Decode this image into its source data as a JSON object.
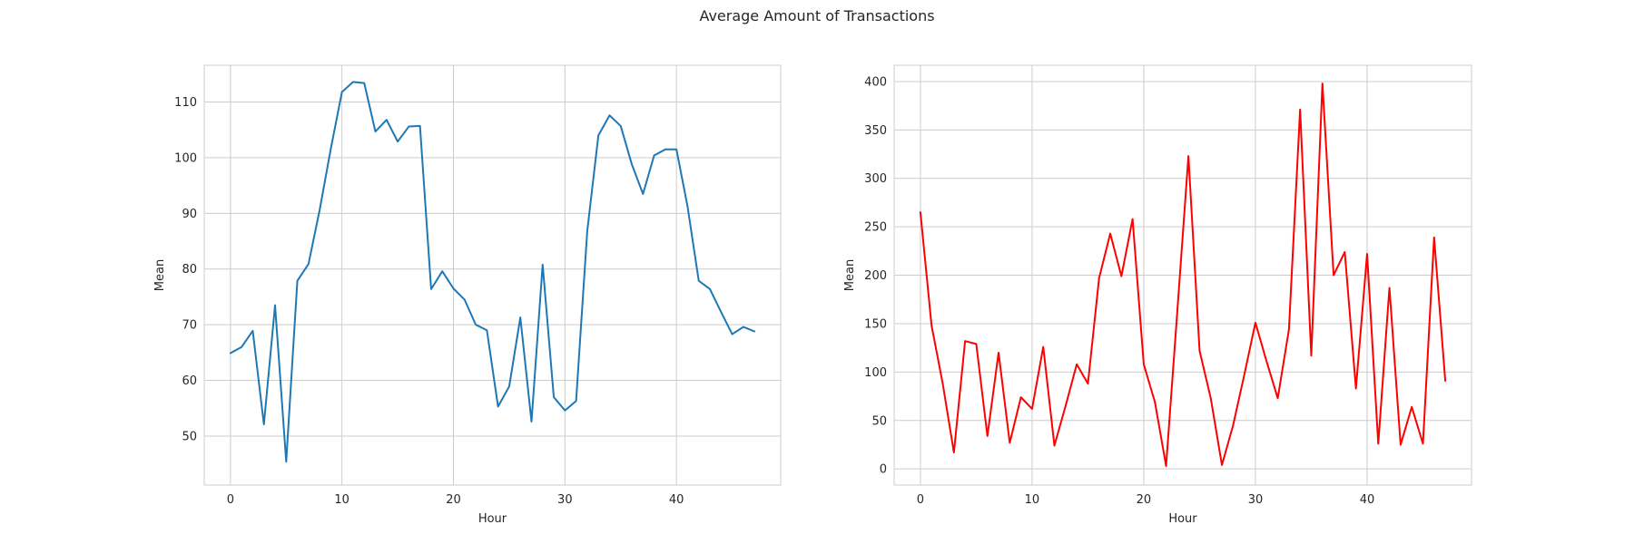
{
  "figure": {
    "title": "Average Amount of Transactions"
  },
  "chart_data": [
    {
      "type": "line",
      "xlabel": "Hour",
      "ylabel": "Mean",
      "xlim": [
        -2.35,
        49.35
      ],
      "ylim": [
        41.2,
        116.6
      ],
      "xticks": [
        0,
        10,
        20,
        30,
        40
      ],
      "yticks": [
        50,
        60,
        70,
        80,
        90,
        100,
        110
      ],
      "grid": true,
      "series": [
        {
          "color": "#1f77b4",
          "x": [
            0,
            1,
            2,
            3,
            4,
            5,
            6,
            7,
            8,
            9,
            10,
            11,
            12,
            13,
            14,
            15,
            16,
            17,
            18,
            19,
            20,
            21,
            22,
            23,
            24,
            25,
            26,
            27,
            28,
            29,
            30,
            31,
            32,
            33,
            34,
            35,
            36,
            37,
            38,
            39,
            40,
            41,
            42,
            43,
            44,
            45,
            46,
            47
          ],
          "y": [
            64.9,
            66.0,
            68.9,
            52.1,
            73.5,
            45.4,
            77.9,
            80.9,
            90.6,
            101.6,
            111.8,
            113.6,
            113.4,
            104.7,
            106.8,
            102.9,
            105.6,
            105.7,
            76.4,
            79.6,
            76.5,
            74.5,
            70.0,
            69.0,
            55.3,
            58.9,
            71.3,
            52.6,
            80.8,
            57.0,
            54.6,
            56.3,
            86.8,
            104.0,
            107.6,
            105.7,
            98.8,
            93.5,
            100.4,
            101.5,
            101.5,
            91.2,
            77.9,
            76.4,
            72.3,
            68.3,
            69.6,
            68.8
          ]
        }
      ]
    },
    {
      "type": "line",
      "xlabel": "Hour",
      "ylabel": "Mean",
      "xlim": [
        -2.35,
        49.35
      ],
      "ylim": [
        -16.7,
        416.8
      ],
      "xticks": [
        0,
        10,
        20,
        30,
        40
      ],
      "yticks": [
        0,
        50,
        100,
        150,
        200,
        250,
        300,
        350,
        400
      ],
      "grid": true,
      "series": [
        {
          "color": "#ff0000",
          "x": [
            0,
            1,
            2,
            3,
            4,
            5,
            6,
            7,
            8,
            9,
            10,
            11,
            12,
            13,
            14,
            15,
            16,
            17,
            18,
            19,
            20,
            21,
            22,
            23,
            24,
            25,
            26,
            27,
            28,
            29,
            30,
            31,
            32,
            33,
            34,
            35,
            36,
            37,
            38,
            39,
            40,
            41,
            42,
            43,
            44,
            45,
            46,
            47
          ],
          "y": [
            265,
            148,
            88,
            17,
            132,
            129,
            34,
            120,
            27,
            74,
            62,
            126,
            24,
            65,
            108,
            88,
            197,
            243,
            199,
            258,
            108,
            69,
            3,
            162,
            323,
            122,
            73,
            4,
            45,
            97,
            151,
            111,
            73,
            144,
            371,
            117,
            398,
            200,
            224,
            83,
            222,
            26,
            187,
            25,
            64,
            26,
            239,
            91
          ]
        }
      ]
    }
  ]
}
